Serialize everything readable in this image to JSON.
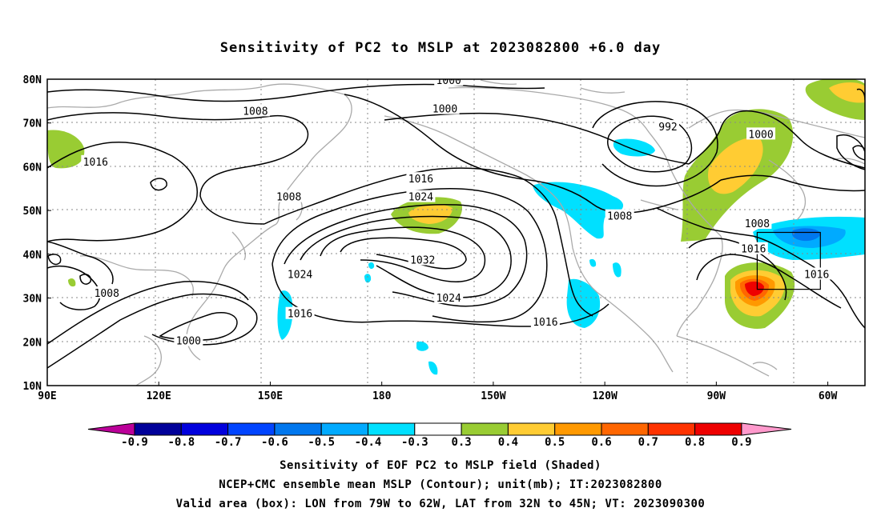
{
  "title": "Sensitivity of PC2 to MSLP at 2023082800 +6.0 day",
  "map": {
    "lat_labels": [
      "80N",
      "70N",
      "60N",
      "50N",
      "40N",
      "30N",
      "20N",
      "10N"
    ],
    "lon_labels": [
      "90E",
      "120E",
      "150E",
      "180",
      "150W",
      "120W",
      "90W",
      "60W"
    ],
    "contour_labels": [
      {
        "text": "1000",
        "lon": -162,
        "lat": 79.8
      },
      {
        "text": "1000",
        "lon": -163,
        "lat": 73.3
      },
      {
        "text": "992",
        "lon": -103,
        "lat": 69.2
      },
      {
        "text": "1000",
        "lon": -78,
        "lat": 67.5
      },
      {
        "text": "1008",
        "lon": 146,
        "lat": 72.8
      },
      {
        "text": "1016",
        "lon": 103,
        "lat": 61.2
      },
      {
        "text": "1008",
        "lon": 155,
        "lat": 53.2
      },
      {
        "text": "1016",
        "lon": -169.5,
        "lat": 57.3
      },
      {
        "text": "1024",
        "lon": -169.5,
        "lat": 53.2
      },
      {
        "text": "1008",
        "lon": -116,
        "lat": 48.8
      },
      {
        "text": "1008",
        "lon": -79,
        "lat": 47.1
      },
      {
        "text": "1016",
        "lon": -80,
        "lat": 41.3
      },
      {
        "text": "1016",
        "lon": -63,
        "lat": 35.5
      },
      {
        "text": "1032",
        "lon": -169,
        "lat": 38.8
      },
      {
        "text": "1024",
        "lon": 158,
        "lat": 35.5
      },
      {
        "text": "1024",
        "lon": -162,
        "lat": 30.1
      },
      {
        "text": "1016",
        "lon": 158,
        "lat": 26.5
      },
      {
        "text": "1016",
        "lon": -136,
        "lat": 24.6
      },
      {
        "text": "1008",
        "lon": 106,
        "lat": 31.2
      },
      {
        "text": "1000",
        "lon": 128,
        "lat": 20.3
      }
    ],
    "valid_box": {
      "lon_min": -79,
      "lon_max": -62,
      "lat_min": 32,
      "lat_max": 45
    }
  },
  "colorbar": {
    "labels": [
      "-0.9",
      "-0.8",
      "-0.7",
      "-0.6",
      "-0.5",
      "-0.4",
      "-0.3",
      "0.3",
      "0.4",
      "0.5",
      "0.6",
      "0.7",
      "0.8",
      "0.9"
    ],
    "colors": [
      "#000099",
      "#0000dd",
      "#0044ff",
      "#0077ee",
      "#00aaff",
      "#00e0ff",
      "#ffffff",
      "#99cc33",
      "#ffcc33",
      "#ff9900",
      "#ff6600",
      "#ff3300",
      "#ee0000"
    ],
    "low_end": "#bb0099",
    "high_end": "#ff99cc"
  },
  "footer": {
    "line1": "Sensitivity of EOF PC2 to MSLP field (Shaded)",
    "line2": "NCEP+CMC ensemble mean MSLP (Contour); unit(mb); IT:2023082800",
    "line3": "Valid area (box): LON from 79W to 62W, LAT from 32N to 45N; VT: 2023090300"
  }
}
